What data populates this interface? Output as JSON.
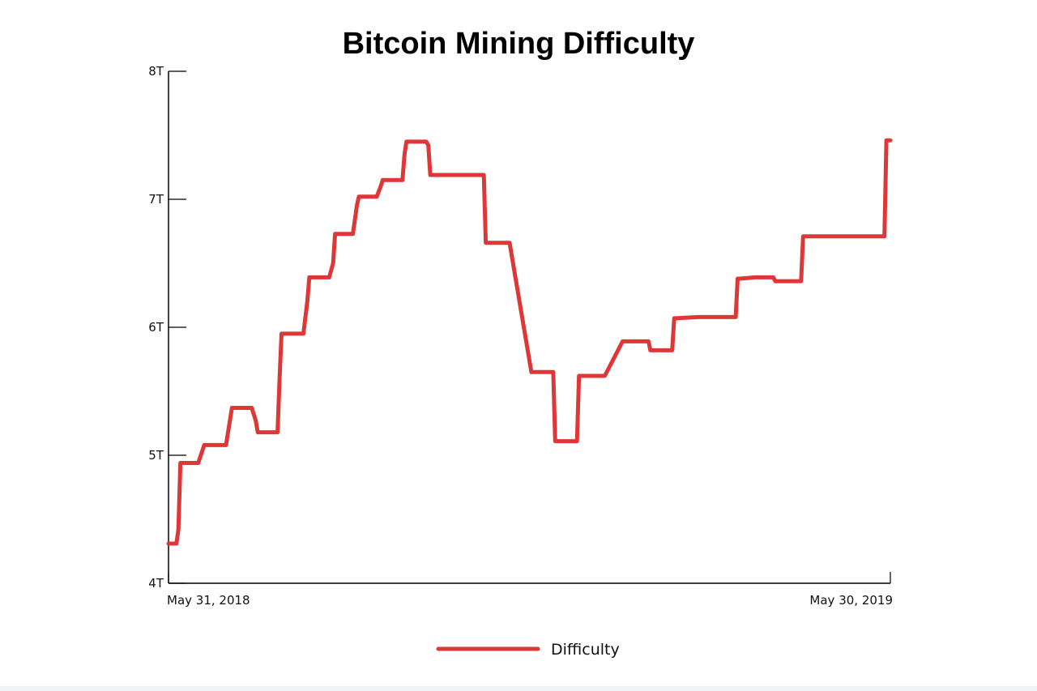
{
  "chart_data": {
    "type": "line",
    "title": "Bitcoin Mining Difficulty",
    "xlabel": "",
    "ylabel": "",
    "x_tick_labels": [
      "May 31, 2018",
      "May 30, 2019"
    ],
    "y_tick_labels": [
      "4T",
      "5T",
      "6T",
      "7T",
      "8T"
    ],
    "y_tick_values": [
      4,
      5,
      6,
      7,
      8
    ],
    "ylim": [
      4,
      8
    ],
    "xlim": [
      "2018-05-31",
      "2019-05-30"
    ],
    "grid": false,
    "legend": "bottom-center",
    "y_unit": "T",
    "series": [
      {
        "name": "Difficulty",
        "color": "#dd3737",
        "x": [
          "2018-05-31",
          "2018-06-04",
          "2018-06-05",
          "2018-06-06",
          "2018-06-15",
          "2018-06-18",
          "2018-06-29",
          "2018-07-02",
          "2018-07-12",
          "2018-07-14",
          "2018-07-15",
          "2018-07-25",
          "2018-07-26",
          "2018-07-27",
          "2018-08-07",
          "2018-08-09",
          "2018-08-10",
          "2018-08-20",
          "2018-08-22",
          "2018-08-23",
          "2018-09-01",
          "2018-09-03",
          "2018-09-04",
          "2018-09-13",
          "2018-09-15",
          "2018-09-16",
          "2018-09-26",
          "2018-09-27",
          "2018-09-28",
          "2018-10-08",
          "2018-10-09",
          "2018-10-10",
          "2018-10-20",
          "2018-10-21",
          "2018-10-22",
          "2018-11-05",
          "2018-11-06",
          "2018-11-07",
          "2018-11-17",
          "2018-11-18",
          "2018-11-19",
          "2018-11-30",
          "2018-12-01",
          "2018-12-02",
          "2018-12-11",
          "2018-12-12",
          "2018-12-13",
          "2018-12-22",
          "2018-12-23",
          "2018-12-24",
          "2019-01-04",
          "2019-01-05",
          "2019-01-06",
          "2019-01-15",
          "2019-01-17",
          "2019-01-18",
          "2019-01-28",
          "2019-01-29",
          "2019-01-30",
          "2019-02-09",
          "2019-02-10",
          "2019-02-11",
          "2019-02-22",
          "2019-03-02",
          "2019-03-03",
          "2019-03-04",
          "2019-03-13",
          "2019-03-14",
          "2019-03-15",
          "2019-03-23",
          "2019-03-24",
          "2019-03-25",
          "2019-04-01",
          "2019-04-02",
          "2019-04-03",
          "2019-04-15",
          "2019-04-16",
          "2019-05-01",
          "2019-05-02",
          "2019-05-03",
          "2019-05-13",
          "2019-05-14",
          "2019-05-27",
          "2019-05-28",
          "2019-05-30"
        ],
        "values": [
          4.31,
          4.31,
          4.42,
          4.94,
          4.94,
          5.08,
          5.08,
          5.37,
          5.37,
          5.27,
          5.18,
          5.18,
          5.6,
          5.95,
          5.95,
          6.2,
          6.39,
          6.39,
          6.5,
          6.73,
          6.73,
          6.95,
          7.02,
          7.02,
          7.1,
          7.15,
          7.15,
          7.35,
          7.45,
          7.45,
          7.42,
          7.19,
          7.19,
          7.19,
          7.19,
          7.19,
          7.19,
          6.66,
          6.66,
          6.66,
          6.66,
          5.65,
          5.65,
          5.65,
          5.65,
          5.11,
          5.11,
          5.11,
          5.11,
          5.62,
          5.62,
          5.62,
          5.62,
          5.89,
          5.89,
          5.89,
          5.89,
          5.82,
          5.82,
          5.82,
          6.07,
          6.07,
          6.08,
          6.08,
          6.08,
          6.08,
          6.08,
          6.38,
          6.38,
          6.39,
          6.39,
          6.39,
          6.39,
          6.36,
          6.36,
          6.36,
          6.71,
          6.71,
          6.71,
          6.71,
          6.71,
          6.71,
          6.71,
          7.46,
          7.46
        ]
      }
    ]
  }
}
